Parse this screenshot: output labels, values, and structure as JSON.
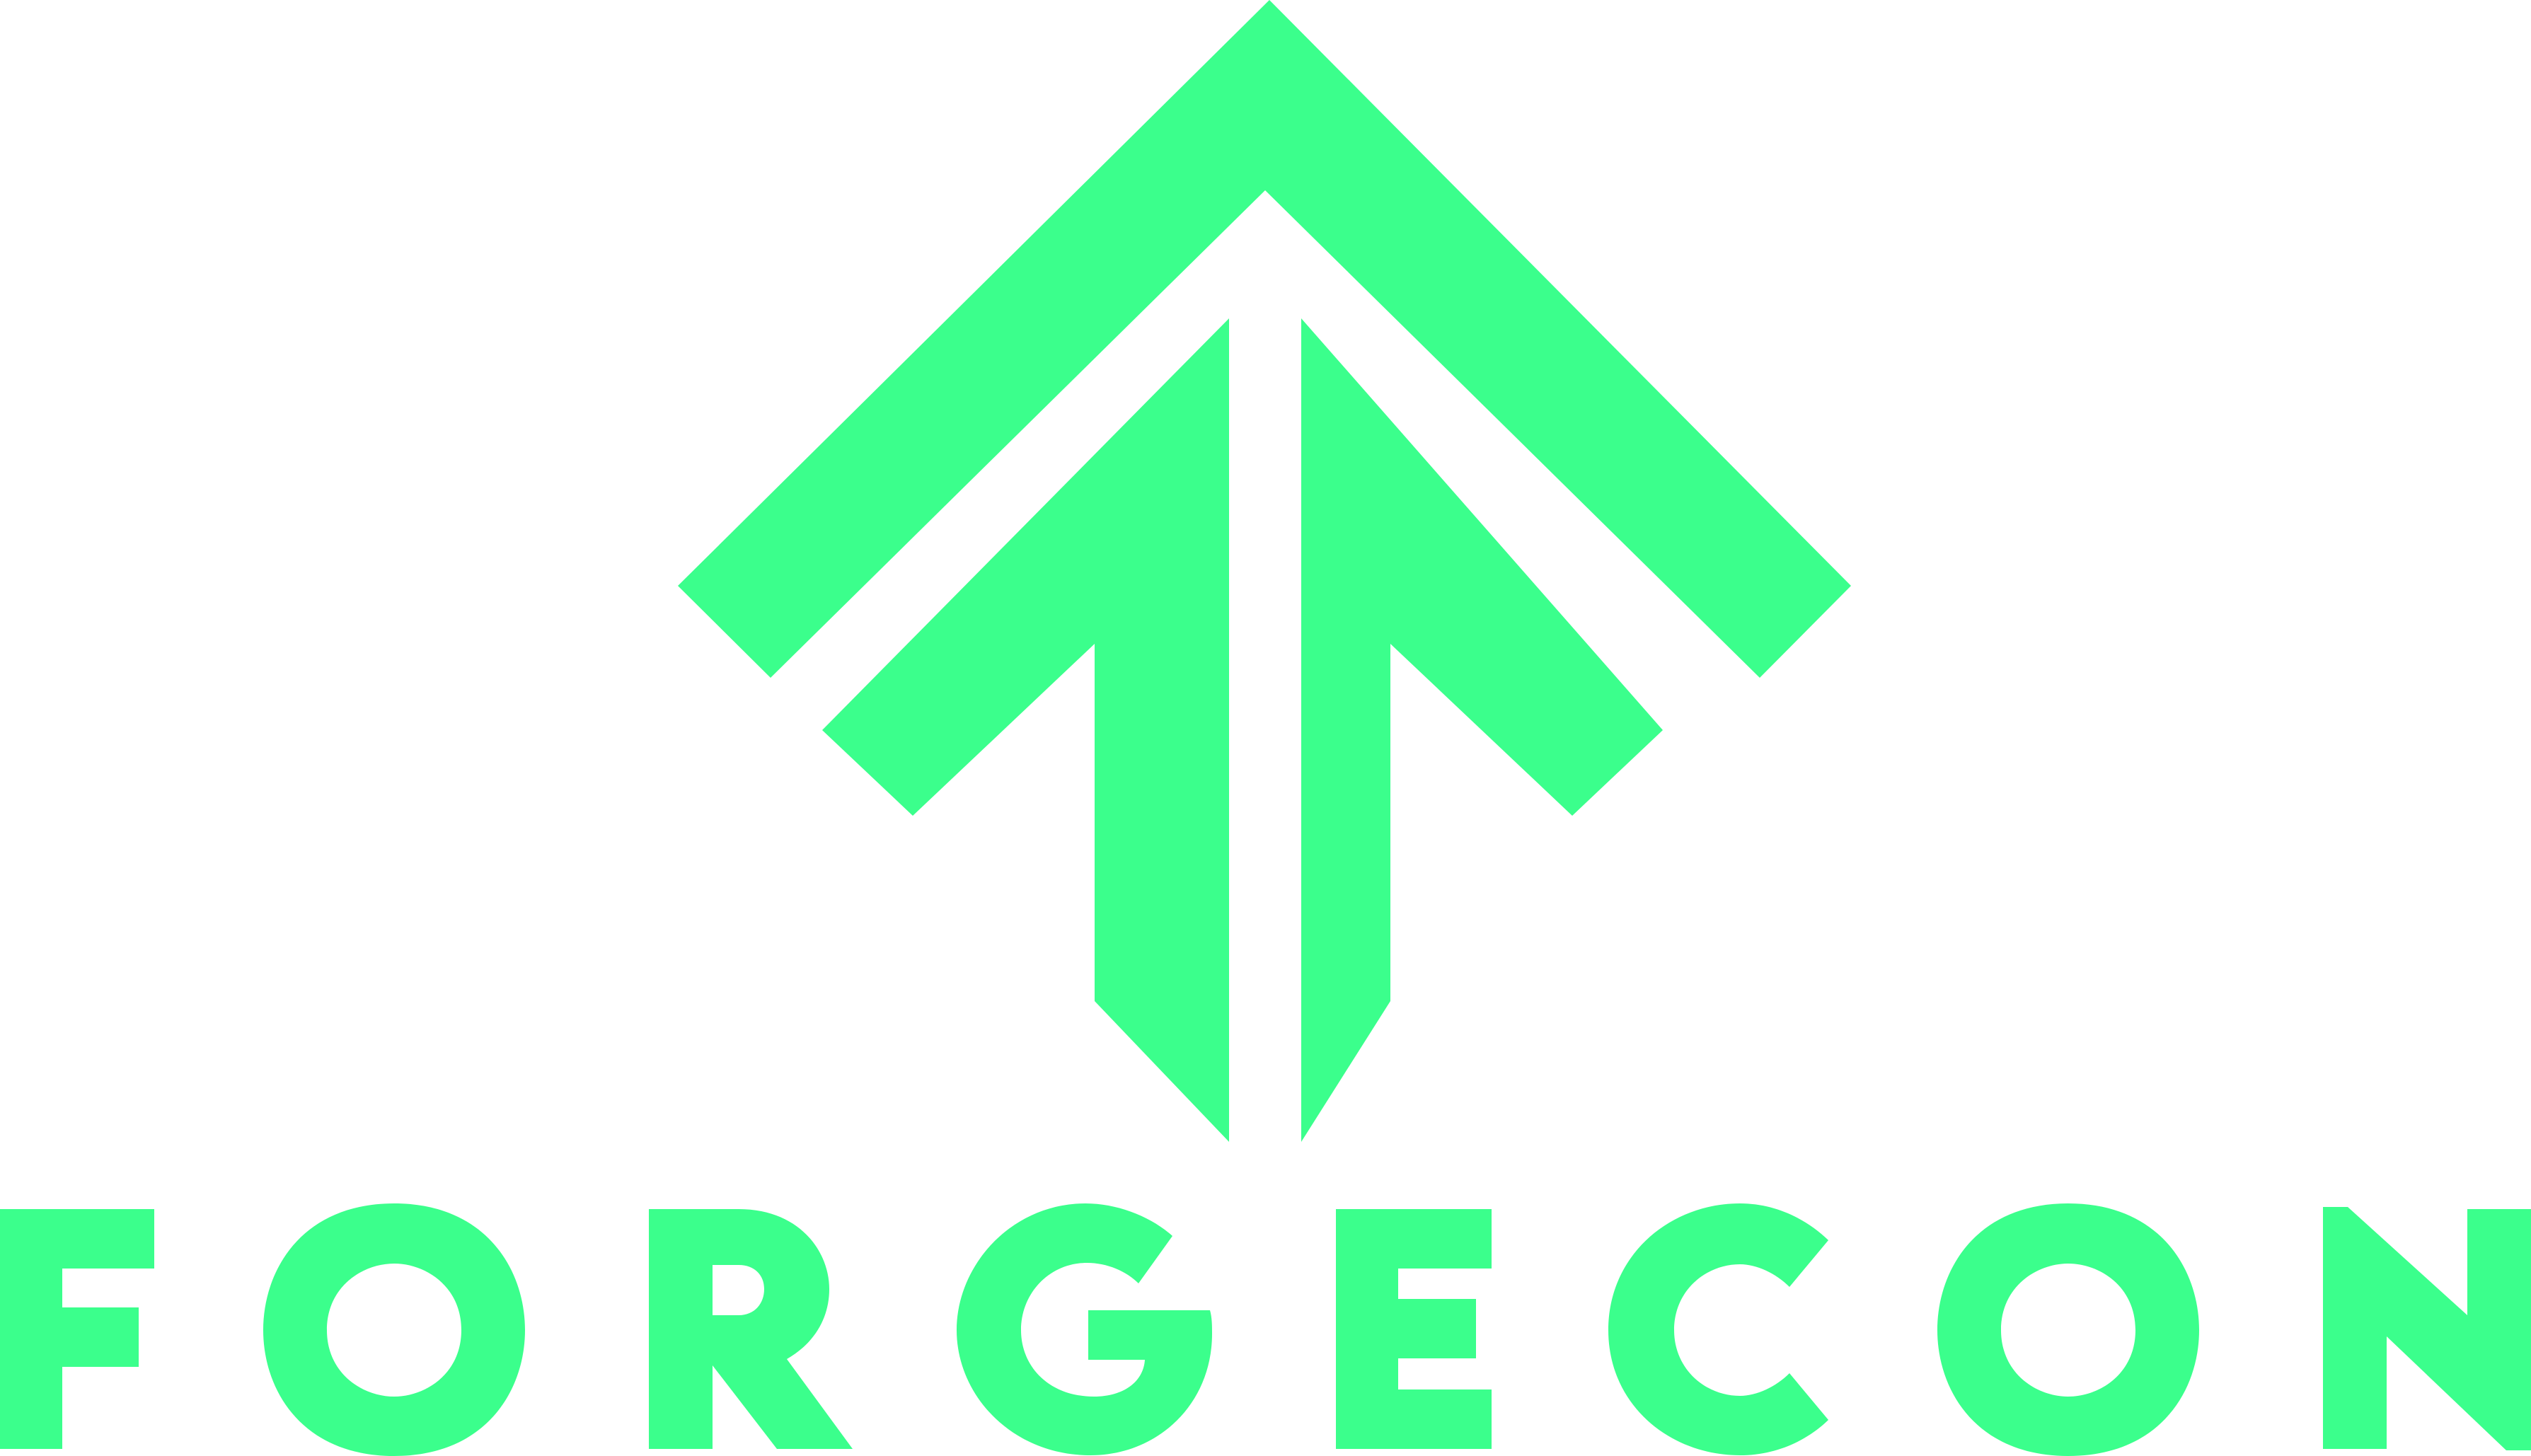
{
  "brand": {
    "name": "FORGECON",
    "letters": [
      "F",
      "O",
      "R",
      "G",
      "E",
      "C",
      "O",
      "N"
    ],
    "accent_color": "#3bff8c",
    "background_color": "#ffffff"
  },
  "mark": {
    "icon": "upward-arrow-logo-icon"
  }
}
